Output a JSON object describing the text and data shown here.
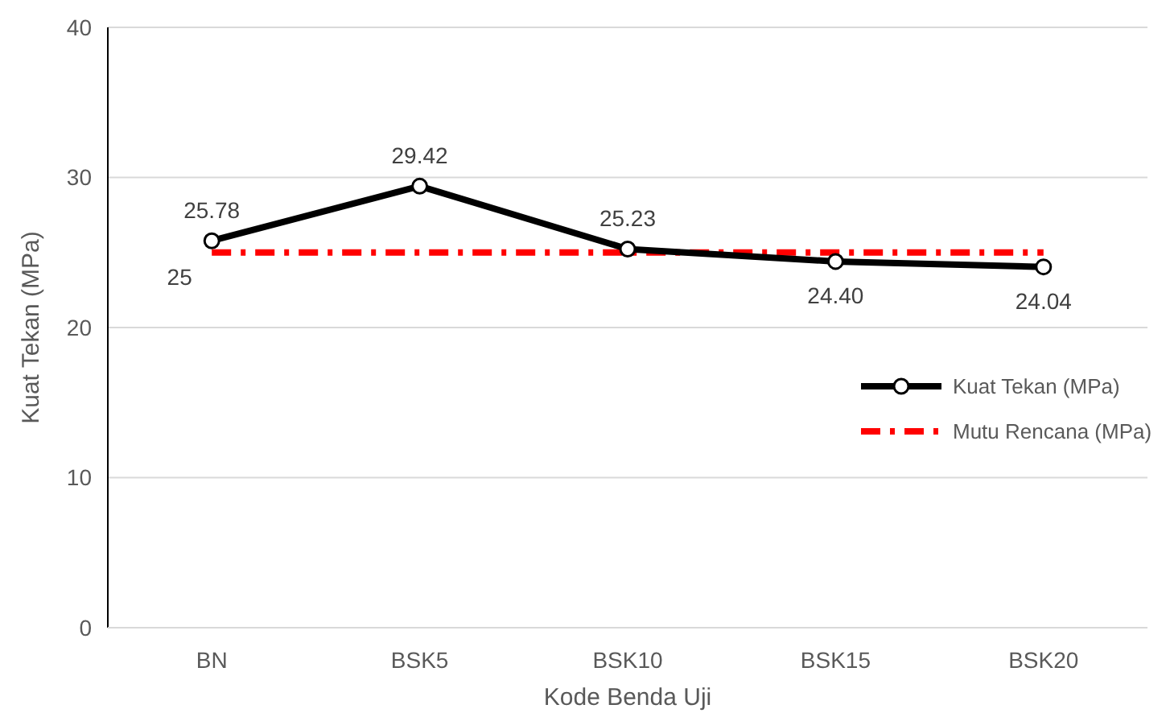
{
  "chart_data": {
    "type": "line",
    "xlabel": "Kode Benda Uji",
    "ylabel": "Kuat Tekan (MPa)",
    "categories": [
      "BN",
      "BSK5",
      "BSK10",
      "BSK15",
      "BSK20"
    ],
    "ylim": [
      0,
      40
    ],
    "yticks": [
      0,
      10,
      20,
      30,
      40
    ],
    "grid": "y",
    "legend": "right",
    "series": [
      {
        "name": "Kuat Tekan (MPa)",
        "color": "#000000",
        "marker": "circle",
        "line_style": "solid",
        "values": [
          25.78,
          29.42,
          25.23,
          24.4,
          24.04
        ],
        "value_labels": [
          "25.78",
          "29.42",
          "25.23",
          "24.40",
          "24.04"
        ]
      },
      {
        "name": "Mutu Rencana (MPa)",
        "color": "#ff0000",
        "marker": "none",
        "line_style": "dashed",
        "values": [
          25,
          25,
          25,
          25,
          25
        ],
        "value_labels": [
          "25",
          null,
          null,
          null,
          null
        ]
      }
    ]
  }
}
